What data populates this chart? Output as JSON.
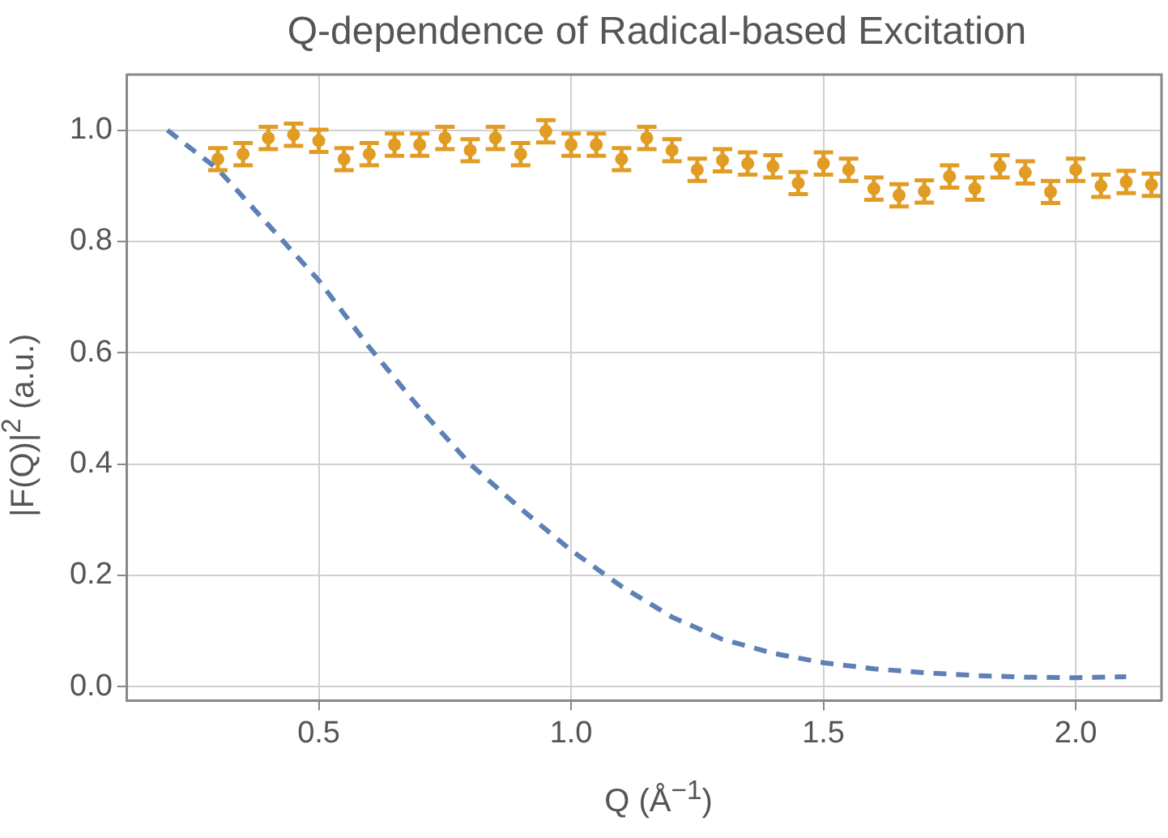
{
  "chart_data": {
    "type": "scatter",
    "title": "Q-dependence of Radical-based Excitation",
    "xlabel": "Q (Å$^{−1}$)",
    "ylabel": "|F(Q)|$^{2}$ (a.u.)",
    "xlim": [
      0.12,
      2.17
    ],
    "ylim": [
      -0.025,
      1.1
    ],
    "xticks": [
      0.5,
      {
        "value": 1,
        "label": "1.0"
      },
      1.5,
      {
        "value": 2,
        "label": "2.0"
      }
    ],
    "yticks": [
      {
        "value": 0,
        "label": "0.0"
      },
      0.2,
      0.4,
      0.6,
      0.8,
      {
        "value": 1,
        "label": "1.0"
      }
    ],
    "grid": true,
    "series": [
      {
        "type": "line",
        "color": "#5e81b5",
        "line_style": "dashed",
        "marker": "none",
        "x": [
          0.2,
          0.3,
          0.4,
          0.5,
          0.6,
          0.7,
          0.8,
          0.9,
          1.0,
          1.1,
          1.2,
          1.3,
          1.4,
          1.5,
          1.6,
          1.7,
          1.8,
          1.9,
          2.0,
          2.1
        ],
        "values": [
          1.0,
          0.93,
          0.83,
          0.73,
          0.61,
          0.5,
          0.4,
          0.32,
          0.245,
          0.18,
          0.125,
          0.085,
          0.06,
          0.043,
          0.032,
          0.025,
          0.02,
          0.017,
          0.016,
          0.018
        ]
      },
      {
        "type": "scatter",
        "color": "#e19c24",
        "marker": "circle",
        "x": [
          0.3,
          0.35,
          0.4,
          0.45,
          0.5,
          0.55,
          0.6,
          0.65,
          0.7,
          0.75,
          0.8,
          0.85,
          0.9,
          0.95,
          1.0,
          1.05,
          1.1,
          1.15,
          1.2,
          1.25,
          1.3,
          1.35,
          1.4,
          1.45,
          1.5,
          1.55,
          1.6,
          1.65,
          1.7,
          1.75,
          1.8,
          1.85,
          1.9,
          1.95,
          2.0,
          2.05,
          2.1,
          2.15
        ],
        "values": [
          0.948,
          0.957,
          0.986,
          0.992,
          0.981,
          0.948,
          0.957,
          0.974,
          0.974,
          0.986,
          0.964,
          0.986,
          0.957,
          0.998,
          0.974,
          0.974,
          0.948,
          0.986,
          0.964,
          0.929,
          0.946,
          0.94,
          0.935,
          0.905,
          0.94,
          0.929,
          0.895,
          0.883,
          0.89,
          0.917,
          0.895,
          0.935,
          0.924,
          0.889,
          0.929,
          0.9,
          0.907,
          0.902
        ],
        "errors": [
          0.02,
          0.02,
          0.02,
          0.02,
          0.02,
          0.02,
          0.02,
          0.02,
          0.02,
          0.02,
          0.02,
          0.02,
          0.02,
          0.02,
          0.02,
          0.02,
          0.02,
          0.02,
          0.02,
          0.02,
          0.02,
          0.02,
          0.02,
          0.02,
          0.02,
          0.02,
          0.02,
          0.02,
          0.02,
          0.02,
          0.02,
          0.02,
          0.02,
          0.02,
          0.02,
          0.02,
          0.02,
          0.02
        ]
      }
    ]
  }
}
